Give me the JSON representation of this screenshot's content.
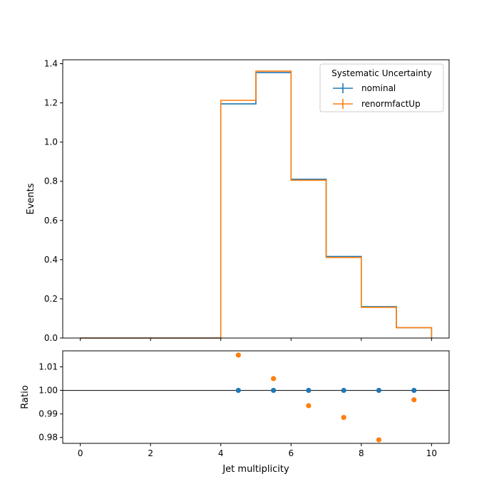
{
  "chart_data": {
    "type": "line",
    "xlabel": "Jet multiplicity",
    "x_ticks": [
      "0",
      "2",
      "4",
      "6",
      "8",
      "10"
    ],
    "xlim": [
      -0.5,
      10.5
    ],
    "bin_edges": [
      0,
      1,
      2,
      3,
      4,
      5,
      6,
      7,
      8,
      9,
      10
    ],
    "main": {
      "ylabel": "Events",
      "ylim": [
        0,
        1.42
      ],
      "y_ticks": [
        "0.0",
        "0.2",
        "0.4",
        "0.6",
        "0.8",
        "1.0",
        "1.2",
        "1.4"
      ],
      "series": [
        {
          "name": "nominal",
          "color": "#1f77b4",
          "values": [
            0,
            0,
            0,
            0,
            1.195,
            1.355,
            0.81,
            0.416,
            0.16,
            0.053
          ]
        },
        {
          "name": "renormfactUp",
          "color": "#ff7f0e",
          "values": [
            0,
            0,
            0,
            0,
            1.213,
            1.362,
            0.805,
            0.411,
            0.157,
            0.053
          ]
        }
      ],
      "legend": {
        "title": "Systematic Uncertainty",
        "placement": "top-right"
      }
    },
    "ratio": {
      "ylabel": "Ratio",
      "ylim": [
        0.9775,
        1.0168
      ],
      "y_ticks": [
        "0.98",
        "0.99",
        "1.00",
        "1.01"
      ],
      "reference": 1.0,
      "points": [
        {
          "series": "nominal",
          "color": "#1f77b4",
          "x": [
            4.5,
            5.5,
            6.5,
            7.5,
            8.5,
            9.5
          ],
          "y": [
            1.0,
            1.0,
            1.0,
            1.0,
            1.0,
            1.0
          ]
        },
        {
          "series": "renormfactUp",
          "color": "#ff7f0e",
          "x": [
            4.5,
            5.5,
            6.5,
            7.5,
            8.5,
            9.5
          ],
          "y": [
            1.015,
            1.005,
            0.9935,
            0.9885,
            0.979,
            0.996
          ]
        }
      ]
    }
  }
}
